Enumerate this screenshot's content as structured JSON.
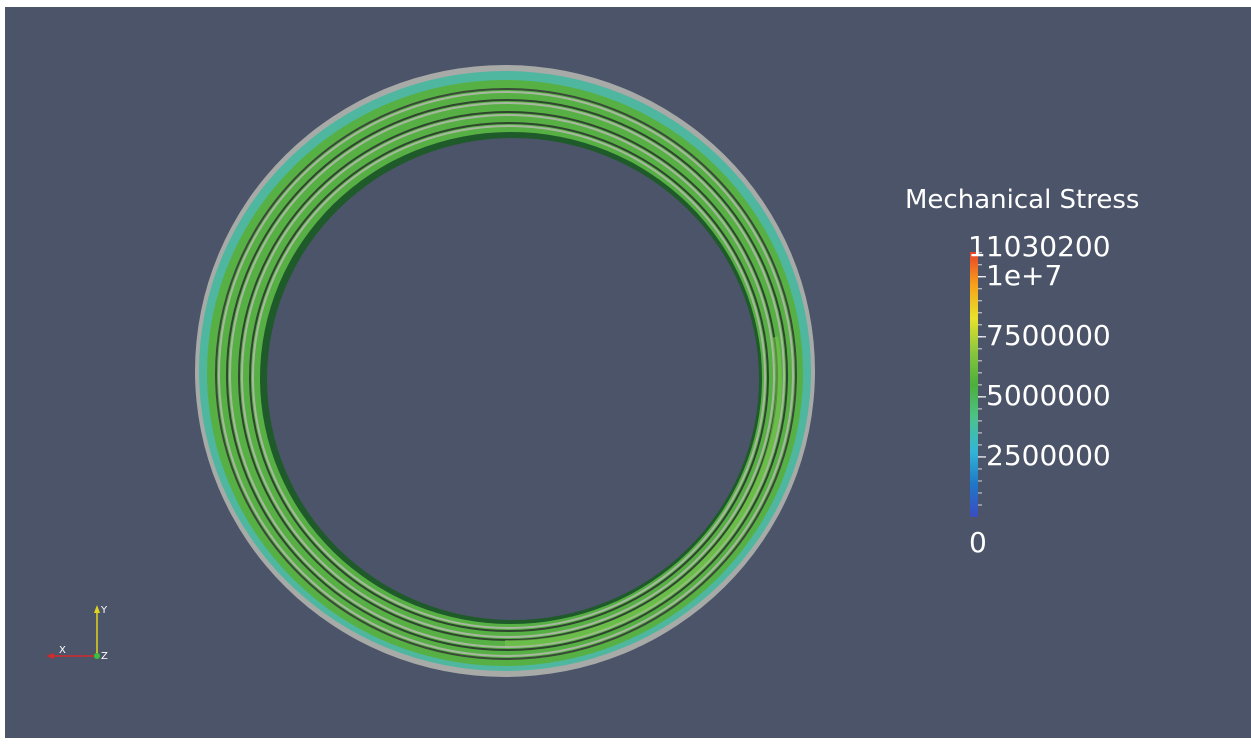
{
  "view": {
    "background_color": "#4b5468"
  },
  "scalar_bar": {
    "title": "Mechanical Stress",
    "range_max_label": "11030200",
    "range_min_label": "0",
    "range": [
      0,
      11030200
    ],
    "ticks": [
      {
        "value": 10000000,
        "label": "1e+7"
      },
      {
        "value": 7500000,
        "label": "7500000"
      },
      {
        "value": 5000000,
        "label": "5000000"
      },
      {
        "value": 2500000,
        "label": "2500000"
      }
    ],
    "colormap": [
      "#3b4cc0",
      "#1f78c8",
      "#33b6d6",
      "#4cc38a",
      "#4caf3a",
      "#8cc63f",
      "#e8e22a",
      "#f7a21a",
      "#e8422a"
    ]
  },
  "orientation_axes": {
    "x_label": "X",
    "y_label": "Y",
    "z_label": "Z",
    "x_color": "#d22b2b",
    "y_color": "#e0d51f",
    "z_color": "#3fbf3f"
  },
  "model": {
    "name": "ring-mesh",
    "outer_color": "#a8aaa8",
    "band_color": "#56b040",
    "band_color_light": "#6cc04a",
    "edge_color": "#4fb6a0",
    "gap_color": "#3a4a38",
    "stripe_color": "#a8b8a0"
  }
}
